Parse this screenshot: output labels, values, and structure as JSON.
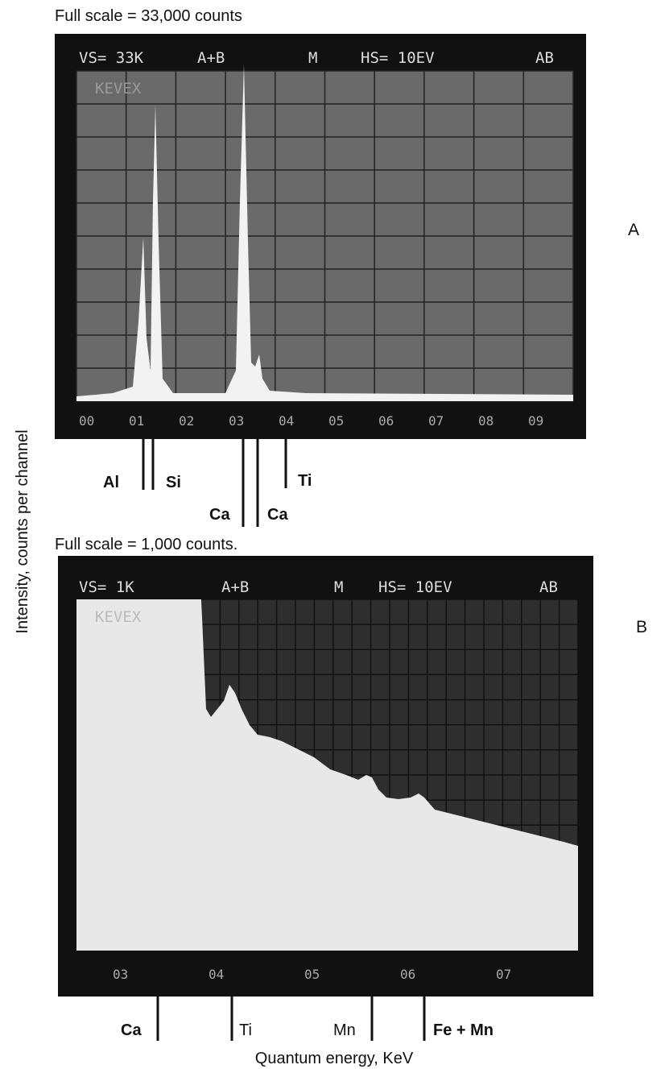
{
  "panel_a": {
    "caption": "Full scale = 33,000 counts",
    "label": "A",
    "screen": {
      "header": [
        "VS= 33K",
        "A+B",
        "M",
        "HS= 10EV",
        "AB"
      ],
      "brand": "KEVEX",
      "axis_labels": [
        "00",
        "01",
        "02",
        "03",
        "04",
        "05",
        "06",
        "07",
        "08",
        "09"
      ]
    },
    "markers": [
      "Al",
      "Si",
      "Ca",
      "Ca",
      "Ti"
    ]
  },
  "panel_b": {
    "caption": "Full scale = 1,000 counts.",
    "label": "B",
    "screen": {
      "header": [
        "VS= 1K",
        "A+B",
        "M",
        "HS= 10EV",
        "AB"
      ],
      "brand": "KEVEX",
      "axis_labels": [
        "03",
        "04",
        "05",
        "06",
        "07"
      ]
    },
    "markers": [
      "Ca",
      "Ti",
      "Mn",
      "Fe + Mn"
    ]
  },
  "y_axis_title": "Intensity, counts per channel",
  "x_axis_title": "Quantum energy, KeV"
}
